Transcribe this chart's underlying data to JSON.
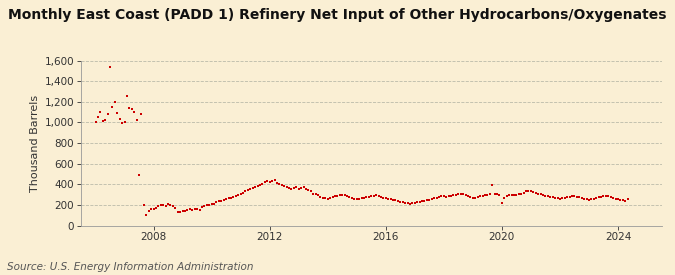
{
  "title": "Monthly East Coast (PADD 1) Refinery Net Input of Other Hydrocarbons/Oxygenates",
  "ylabel": "Thousand Barrels",
  "source": "Source: U.S. Energy Information Administration",
  "background_color": "#faefd4",
  "plot_bg_color": "#faefd4",
  "marker_color": "#cc0000",
  "grid_color": "#bbbbaa",
  "ylim": [
    0,
    1600
  ],
  "yticks": [
    0,
    200,
    400,
    600,
    800,
    1000,
    1200,
    1400,
    1600
  ],
  "xlim": [
    2005.5,
    2025.5
  ],
  "xticks": [
    2008,
    2012,
    2016,
    2020,
    2024
  ],
  "title_fontsize": 10,
  "ylabel_fontsize": 8,
  "tick_fontsize": 7.5,
  "source_fontsize": 7.5,
  "data": [
    [
      2006.0,
      1000
    ],
    [
      2006.083,
      1050
    ],
    [
      2006.167,
      1100
    ],
    [
      2006.25,
      1010
    ],
    [
      2006.333,
      1020
    ],
    [
      2006.417,
      1080
    ],
    [
      2006.5,
      1540
    ],
    [
      2006.583,
      1150
    ],
    [
      2006.667,
      1200
    ],
    [
      2006.75,
      1090
    ],
    [
      2006.833,
      1030
    ],
    [
      2006.917,
      990
    ],
    [
      2007.0,
      1000
    ],
    [
      2007.083,
      1260
    ],
    [
      2007.167,
      1140
    ],
    [
      2007.25,
      1130
    ],
    [
      2007.333,
      1100
    ],
    [
      2007.417,
      1020
    ],
    [
      2007.5,
      490
    ],
    [
      2007.583,
      1080
    ],
    [
      2007.667,
      200
    ],
    [
      2007.75,
      100
    ],
    [
      2007.833,
      140
    ],
    [
      2007.917,
      160
    ],
    [
      2008.0,
      160
    ],
    [
      2008.083,
      170
    ],
    [
      2008.167,
      190
    ],
    [
      2008.25,
      200
    ],
    [
      2008.333,
      200
    ],
    [
      2008.417,
      190
    ],
    [
      2008.5,
      210
    ],
    [
      2008.583,
      200
    ],
    [
      2008.667,
      185
    ],
    [
      2008.75,
      170
    ],
    [
      2008.833,
      130
    ],
    [
      2008.917,
      130
    ],
    [
      2009.0,
      140
    ],
    [
      2009.083,
      145
    ],
    [
      2009.167,
      150
    ],
    [
      2009.25,
      160
    ],
    [
      2009.333,
      155
    ],
    [
      2009.417,
      160
    ],
    [
      2009.5,
      160
    ],
    [
      2009.583,
      155
    ],
    [
      2009.667,
      175
    ],
    [
      2009.75,
      185
    ],
    [
      2009.833,
      195
    ],
    [
      2009.917,
      200
    ],
    [
      2010.0,
      205
    ],
    [
      2010.083,
      210
    ],
    [
      2010.167,
      225
    ],
    [
      2010.25,
      235
    ],
    [
      2010.333,
      240
    ],
    [
      2010.417,
      250
    ],
    [
      2010.5,
      260
    ],
    [
      2010.583,
      265
    ],
    [
      2010.667,
      270
    ],
    [
      2010.75,
      280
    ],
    [
      2010.833,
      290
    ],
    [
      2010.917,
      300
    ],
    [
      2011.0,
      310
    ],
    [
      2011.083,
      320
    ],
    [
      2011.167,
      330
    ],
    [
      2011.25,
      345
    ],
    [
      2011.333,
      355
    ],
    [
      2011.417,
      360
    ],
    [
      2011.5,
      370
    ],
    [
      2011.583,
      380
    ],
    [
      2011.667,
      390
    ],
    [
      2011.75,
      400
    ],
    [
      2011.833,
      420
    ],
    [
      2011.917,
      430
    ],
    [
      2012.0,
      420
    ],
    [
      2012.083,
      430
    ],
    [
      2012.167,
      440
    ],
    [
      2012.25,
      410
    ],
    [
      2012.333,
      400
    ],
    [
      2012.417,
      395
    ],
    [
      2012.5,
      380
    ],
    [
      2012.583,
      370
    ],
    [
      2012.667,
      360
    ],
    [
      2012.75,
      355
    ],
    [
      2012.833,
      365
    ],
    [
      2012.917,
      370
    ],
    [
      2013.0,
      350
    ],
    [
      2013.083,
      360
    ],
    [
      2013.167,
      370
    ],
    [
      2013.25,
      355
    ],
    [
      2013.333,
      340
    ],
    [
      2013.417,
      330
    ],
    [
      2013.5,
      310
    ],
    [
      2013.583,
      305
    ],
    [
      2013.667,
      295
    ],
    [
      2013.75,
      280
    ],
    [
      2013.833,
      270
    ],
    [
      2013.917,
      265
    ],
    [
      2014.0,
      260
    ],
    [
      2014.083,
      270
    ],
    [
      2014.167,
      280
    ],
    [
      2014.25,
      285
    ],
    [
      2014.333,
      290
    ],
    [
      2014.417,
      295
    ],
    [
      2014.5,
      300
    ],
    [
      2014.583,
      295
    ],
    [
      2014.667,
      290
    ],
    [
      2014.75,
      280
    ],
    [
      2014.833,
      270
    ],
    [
      2014.917,
      260
    ],
    [
      2015.0,
      255
    ],
    [
      2015.083,
      260
    ],
    [
      2015.167,
      265
    ],
    [
      2015.25,
      270
    ],
    [
      2015.333,
      275
    ],
    [
      2015.417,
      280
    ],
    [
      2015.5,
      285
    ],
    [
      2015.583,
      290
    ],
    [
      2015.667,
      295
    ],
    [
      2015.75,
      285
    ],
    [
      2015.833,
      280
    ],
    [
      2015.917,
      270
    ],
    [
      2016.0,
      265
    ],
    [
      2016.083,
      260
    ],
    [
      2016.167,
      255
    ],
    [
      2016.25,
      250
    ],
    [
      2016.333,
      245
    ],
    [
      2016.417,
      235
    ],
    [
      2016.5,
      230
    ],
    [
      2016.583,
      225
    ],
    [
      2016.667,
      220
    ],
    [
      2016.75,
      215
    ],
    [
      2016.833,
      210
    ],
    [
      2016.917,
      215
    ],
    [
      2017.0,
      220
    ],
    [
      2017.083,
      225
    ],
    [
      2017.167,
      230
    ],
    [
      2017.25,
      235
    ],
    [
      2017.333,
      240
    ],
    [
      2017.417,
      245
    ],
    [
      2017.5,
      250
    ],
    [
      2017.583,
      260
    ],
    [
      2017.667,
      265
    ],
    [
      2017.75,
      270
    ],
    [
      2017.833,
      280
    ],
    [
      2017.917,
      290
    ],
    [
      2018.0,
      285
    ],
    [
      2018.083,
      280
    ],
    [
      2018.167,
      285
    ],
    [
      2018.25,
      290
    ],
    [
      2018.333,
      295
    ],
    [
      2018.417,
      300
    ],
    [
      2018.5,
      305
    ],
    [
      2018.583,
      310
    ],
    [
      2018.667,
      305
    ],
    [
      2018.75,
      295
    ],
    [
      2018.833,
      285
    ],
    [
      2018.917,
      275
    ],
    [
      2019.0,
      265
    ],
    [
      2019.083,
      270
    ],
    [
      2019.167,
      280
    ],
    [
      2019.25,
      285
    ],
    [
      2019.333,
      290
    ],
    [
      2019.417,
      295
    ],
    [
      2019.5,
      300
    ],
    [
      2019.583,
      305
    ],
    [
      2019.667,
      395
    ],
    [
      2019.75,
      310
    ],
    [
      2019.833,
      305
    ],
    [
      2019.917,
      295
    ],
    [
      2020.0,
      215
    ],
    [
      2020.083,
      270
    ],
    [
      2020.167,
      290
    ],
    [
      2020.25,
      295
    ],
    [
      2020.333,
      295
    ],
    [
      2020.417,
      295
    ],
    [
      2020.5,
      300
    ],
    [
      2020.583,
      305
    ],
    [
      2020.667,
      310
    ],
    [
      2020.75,
      320
    ],
    [
      2020.833,
      330
    ],
    [
      2020.917,
      335
    ],
    [
      2021.0,
      330
    ],
    [
      2021.083,
      325
    ],
    [
      2021.167,
      320
    ],
    [
      2021.25,
      310
    ],
    [
      2021.333,
      305
    ],
    [
      2021.417,
      295
    ],
    [
      2021.5,
      290
    ],
    [
      2021.583,
      285
    ],
    [
      2021.667,
      280
    ],
    [
      2021.75,
      275
    ],
    [
      2021.833,
      270
    ],
    [
      2021.917,
      265
    ],
    [
      2022.0,
      260
    ],
    [
      2022.083,
      265
    ],
    [
      2022.167,
      270
    ],
    [
      2022.25,
      275
    ],
    [
      2022.333,
      280
    ],
    [
      2022.417,
      285
    ],
    [
      2022.5,
      285
    ],
    [
      2022.583,
      280
    ],
    [
      2022.667,
      275
    ],
    [
      2022.75,
      265
    ],
    [
      2022.833,
      260
    ],
    [
      2022.917,
      255
    ],
    [
      2023.0,
      250
    ],
    [
      2023.083,
      255
    ],
    [
      2023.167,
      260
    ],
    [
      2023.25,
      270
    ],
    [
      2023.333,
      275
    ],
    [
      2023.417,
      280
    ],
    [
      2023.5,
      285
    ],
    [
      2023.583,
      290
    ],
    [
      2023.667,
      285
    ],
    [
      2023.75,
      280
    ],
    [
      2023.833,
      270
    ],
    [
      2023.917,
      260
    ],
    [
      2024.0,
      255
    ],
    [
      2024.083,
      250
    ],
    [
      2024.167,
      245
    ],
    [
      2024.25,
      240
    ],
    [
      2024.333,
      255
    ]
  ]
}
